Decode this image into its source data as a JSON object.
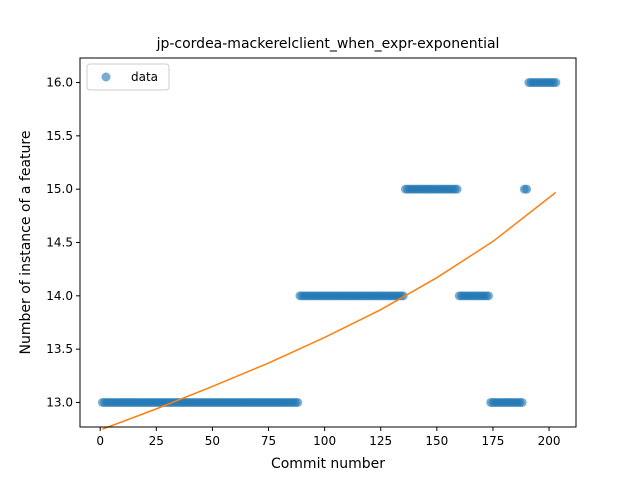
{
  "chart_data": {
    "type": "scatter",
    "title": "jp-cordea-mackerelclient_when_expr-exponential",
    "xlabel": "Commit number",
    "ylabel": "Number of instance of a feature",
    "xlim": [
      -9,
      212
    ],
    "ylim": [
      12.77,
      16.23
    ],
    "x_ticks": [
      0,
      25,
      50,
      75,
      100,
      125,
      150,
      175,
      200
    ],
    "y_ticks": [
      13.0,
      13.5,
      14.0,
      14.5,
      15.0,
      15.5,
      16.0
    ],
    "x_tick_labels": [
      "0",
      "25",
      "50",
      "75",
      "100",
      "125",
      "150",
      "175",
      "200"
    ],
    "y_tick_labels": [
      "13.0",
      "13.5",
      "14.0",
      "14.5",
      "15.0",
      "15.5",
      "16.0"
    ],
    "grid": false,
    "legend": {
      "position": "top-left",
      "entries": [
        "data"
      ]
    },
    "colors": {
      "data": "#1f77b4",
      "fit": "#ff7f0e"
    },
    "series": [
      {
        "name": "data",
        "kind": "scatter",
        "segments": [
          {
            "x_start": 1,
            "x_end": 88,
            "y": 13.0
          },
          {
            "x_start": 89,
            "x_end": 135,
            "y": 14.0
          },
          {
            "x_start": 136,
            "x_end": 159,
            "y": 15.0
          },
          {
            "x_start": 160,
            "x_end": 173,
            "y": 14.0
          },
          {
            "x_start": 174,
            "x_end": 188,
            "y": 13.0
          },
          {
            "x_start": 189,
            "x_end": 190,
            "y": 15.0
          },
          {
            "x_start": 191,
            "x_end": 203,
            "y": 16.0
          }
        ]
      },
      {
        "kind": "line",
        "x": [
          1,
          25,
          50,
          75,
          100,
          125,
          150,
          175,
          203
        ],
        "y": [
          12.75,
          12.94,
          13.15,
          13.37,
          13.61,
          13.87,
          14.17,
          14.51,
          14.97
        ]
      }
    ]
  }
}
